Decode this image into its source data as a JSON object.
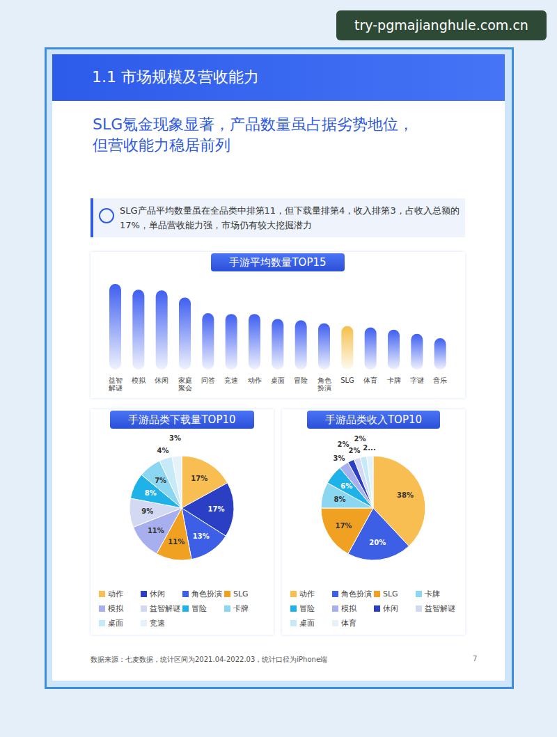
{
  "watermark": "try-pgmajianghule.com.cn",
  "header": "1.1 市场规模及营收能力",
  "headline": [
    "SLG氪金现象显著，产品数量虽占据劣势地位，",
    "但营收能力稳居前列"
  ],
  "summary": "SLG产品平均数量虽在全品类中排第11，但下载量排第4，收入排第3，占收入总额的17%，单品营收能力强，市场仍有较大挖掘潜力",
  "source": "数据来源：七麦数据，统计区间为2021.04-2022.03，统计口径为iPhone端",
  "page": "7",
  "chart_data": [
    {
      "type": "bar",
      "title": "手游平均数量TOP15",
      "categories": [
        "益智解谜",
        "模拟",
        "休闲",
        "家庭聚会",
        "问答",
        "竞速",
        "动作",
        "桌面",
        "冒险",
        "角色扮演",
        "SLG",
        "体育",
        "卡牌",
        "字谜",
        "音乐"
      ],
      "values": [
        120,
        112,
        111,
        101,
        79,
        78,
        78,
        71,
        69,
        65,
        61,
        59,
        56,
        50,
        44
      ],
      "colors": [
        "#3F5FF0",
        "#3F5FF0",
        "#3F5FF0",
        "#3F5FF0",
        "#3F5FF0",
        "#3F5FF0",
        "#3F5FF0",
        "#3F5FF0",
        "#3F5FF0",
        "#3F5FF0",
        "#F5C04A",
        "#3F5FF0",
        "#3F5FF0",
        "#3F5FF0",
        "#3F5FF0"
      ],
      "ylim": [
        0,
        125
      ],
      "tick_labels": "x",
      "grid": false
    },
    {
      "type": "pie",
      "title": "手游品类下载量TOP10",
      "categories": [
        "动作",
        "休闲",
        "角色扮演",
        "SLG",
        "模拟",
        "益智解谜",
        "冒险",
        "卡牌",
        "桌面",
        "竞速"
      ],
      "values": [
        17,
        17,
        13,
        11,
        11,
        9,
        8,
        7,
        4,
        3
      ],
      "value_labels": [
        "17%",
        "17%",
        "13%",
        "11%",
        "11%",
        "9%",
        "8%",
        "7%",
        "4%",
        "3%"
      ],
      "colors": [
        "#F8BE52",
        "#2A3FC4",
        "#3D5FE6",
        "#F0A122",
        "#A7AFEE",
        "#D3D9F3",
        "#1FB2E8",
        "#8BD6F1",
        "#C6EAF8",
        "#E6F2FA"
      ],
      "data_labels": true,
      "legend": "bottom"
    },
    {
      "type": "pie",
      "title": "手游品类收入TOP10",
      "categories": [
        "动作",
        "角色扮演",
        "SLG",
        "卡牌",
        "冒险",
        "模拟",
        "休闲",
        "益智解谜",
        "桌面",
        "体育"
      ],
      "values": [
        38,
        20,
        17,
        8,
        6,
        3,
        2,
        2,
        2,
        2
      ],
      "value_labels": [
        "38%",
        "20%",
        "17%",
        "8%",
        "6%",
        "3%",
        "2%",
        "2%",
        "2%",
        "2..."
      ],
      "colors": [
        "#F8BE52",
        "#3D5FE6",
        "#F0A122",
        "#8BD6F1",
        "#1FB2E8",
        "#A7AFEE",
        "#2A3FC4",
        "#D3D9F3",
        "#C6EAF8",
        "#E6F2FA"
      ],
      "data_labels": true,
      "legend": "bottom"
    }
  ]
}
